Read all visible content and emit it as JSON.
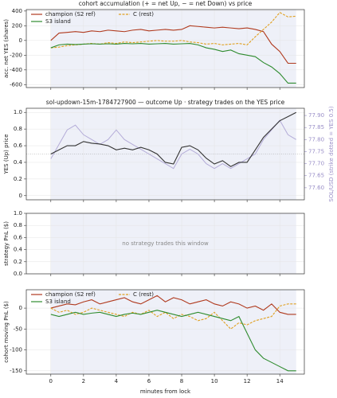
{
  "chart_data": [
    {
      "type": "line",
      "title": "cohort accumulation (+ = net Up, − = net Down) vs price",
      "ylabel": "acc. net YES (shares)",
      "x": [
        0,
        0.5,
        1,
        1.5,
        2,
        2.5,
        3,
        3.5,
        4,
        4.5,
        5,
        5.5,
        6,
        6.5,
        7,
        7.5,
        8,
        8.5,
        9,
        9.5,
        10,
        10.5,
        11,
        11.5,
        12,
        12.5,
        13,
        13.5,
        14,
        14.5,
        15
      ],
      "series": [
        {
          "name": "champion (S2 ref)",
          "color": "#b03a1e",
          "style": "solid",
          "values": [
            0,
            100,
            110,
            120,
            110,
            130,
            120,
            140,
            130,
            120,
            140,
            150,
            130,
            140,
            150,
            140,
            150,
            200,
            190,
            180,
            170,
            180,
            170,
            160,
            170,
            150,
            120,
            -50,
            -150,
            -310,
            -310
          ]
        },
        {
          "name": "C (rest)",
          "color": "#e0a020",
          "style": "dashed",
          "values": [
            -100,
            -90,
            -70,
            -60,
            -50,
            -40,
            -50,
            -30,
            -40,
            -20,
            -30,
            -20,
            -10,
            0,
            -10,
            -10,
            0,
            -20,
            -30,
            -50,
            -40,
            -60,
            -50,
            -40,
            -60,
            50,
            150,
            250,
            380,
            320,
            330
          ]
        },
        {
          "name": "S3 island",
          "color": "#2e8b2e",
          "style": "solid",
          "values": [
            -100,
            -60,
            -50,
            -55,
            -50,
            -45,
            -50,
            -45,
            -50,
            -40,
            -45,
            -40,
            -50,
            -45,
            -40,
            -50,
            -45,
            -40,
            -60,
            -100,
            -120,
            -150,
            -130,
            -180,
            -200,
            -220,
            -300,
            -360,
            -450,
            -580,
            -580
          ]
        }
      ],
      "xlim": [
        -1.5,
        15.5
      ],
      "ylim": [
        -640,
        420
      ],
      "yticks": [
        -600,
        -400,
        -200,
        0,
        200,
        400
      ],
      "grid": true,
      "legend": "upper left"
    },
    {
      "type": "line",
      "title": "sol-updown-15m-1784727900 — outcome Up · strategy trades on the YES price",
      "ylabel": "YES (Up) price",
      "y2label": "SOL/USD (strike dotted = YES 0.5)",
      "x": [
        0,
        0.5,
        1,
        1.5,
        2,
        2.5,
        3,
        3.5,
        4,
        4.5,
        5,
        5.5,
        6,
        6.5,
        7,
        7.5,
        8,
        8.5,
        9,
        9.5,
        10,
        10.5,
        11,
        11.5,
        12,
        12.5,
        13,
        13.5,
        14,
        14.5,
        15
      ],
      "series": [
        {
          "color": "#b4acd8",
          "axis": "y2",
          "style": "solid",
          "values": [
            77.72,
            77.78,
            77.84,
            77.86,
            77.82,
            77.8,
            77.78,
            77.8,
            77.84,
            77.8,
            77.78,
            77.76,
            77.74,
            77.72,
            77.7,
            77.68,
            77.74,
            77.76,
            77.74,
            77.7,
            77.68,
            77.7,
            77.68,
            77.7,
            77.72,
            77.74,
            77.8,
            77.84,
            77.88,
            77.82,
            77.8
          ]
        },
        {
          "color": "#333333",
          "style": "solid",
          "values": [
            0.5,
            0.55,
            0.6,
            0.6,
            0.65,
            0.63,
            0.62,
            0.6,
            0.55,
            0.57,
            0.55,
            0.58,
            0.55,
            0.5,
            0.4,
            0.38,
            0.58,
            0.6,
            0.55,
            0.45,
            0.38,
            0.42,
            0.35,
            0.4,
            0.4,
            0.55,
            0.7,
            0.8,
            0.9,
            0.95,
            1.0
          ]
        }
      ],
      "reference_line": 0.5,
      "xlim": [
        -1.5,
        15.5
      ],
      "ylim": [
        -0.05,
        1.05
      ],
      "yticks": [
        0,
        {
          "value": 0.2,
          "label": "0.2"
        },
        {
          "value": 0.4,
          "label": "0.4"
        },
        {
          "value": 0.6,
          "label": "0.6"
        },
        {
          "value": 0.8,
          "label": "0.8"
        },
        {
          "value": 1,
          "label": "1.0"
        }
      ],
      "y2lim": [
        77.55,
        77.93
      ],
      "y2ticks": [
        {
          "value": 77.6,
          "label": "77.60"
        },
        {
          "value": 77.65,
          "label": "77.65"
        },
        {
          "value": 77.7,
          "label": "77.70"
        },
        {
          "value": 77.75,
          "label": "77.75"
        },
        {
          "value": 77.8,
          "label": "77.80"
        },
        {
          "value": 77.85,
          "label": "77.85"
        },
        {
          "value": 77.9,
          "label": "77.90"
        }
      ],
      "y2color": "#9a8fc8",
      "grid": true
    },
    {
      "type": "line",
      "ylabel": "strategy PnL ($)",
      "annotation": "no strategy trades this window",
      "series": [],
      "xlim": [
        -1.5,
        15.5
      ],
      "ylim": [
        0,
        1
      ],
      "yticks": [
        {
          "value": 0,
          "label": "0.0"
        },
        {
          "value": 0.2,
          "label": "0.2"
        },
        {
          "value": 0.4,
          "label": "0.4"
        },
        {
          "value": 0.6,
          "label": "0.6"
        },
        {
          "value": 0.8,
          "label": "0.8"
        },
        {
          "value": 1,
          "label": "1.0"
        }
      ],
      "grid": true
    },
    {
      "type": "line",
      "ylabel": "cohort moving PnL ($)",
      "xlabel": "minutes from lock",
      "x": [
        0,
        0.5,
        1,
        1.5,
        2,
        2.5,
        3,
        3.5,
        4,
        4.5,
        5,
        5.5,
        6,
        6.5,
        7,
        7.5,
        8,
        8.5,
        9,
        9.5,
        10,
        10.5,
        11,
        11.5,
        12,
        12.5,
        13,
        13.5,
        14,
        14.5,
        15
      ],
      "series": [
        {
          "name": "champion (S2 ref)",
          "color": "#b03a1e",
          "style": "solid",
          "values": [
            0,
            5,
            10,
            8,
            15,
            20,
            10,
            15,
            20,
            25,
            15,
            10,
            20,
            30,
            15,
            25,
            20,
            10,
            15,
            20,
            10,
            5,
            15,
            10,
            0,
            5,
            -5,
            10,
            -10,
            -15,
            -15
          ]
        },
        {
          "name": "C (rest)",
          "color": "#e0a020",
          "style": "dashed",
          "values": [
            0,
            -10,
            -5,
            -15,
            -10,
            0,
            -5,
            -10,
            -15,
            -20,
            -10,
            -15,
            -5,
            -20,
            -10,
            -25,
            -15,
            -20,
            -30,
            -25,
            -10,
            -30,
            -50,
            -35,
            -40,
            -30,
            -25,
            -20,
            5,
            10,
            10
          ]
        },
        {
          "name": "S3 island",
          "color": "#2e8b2e",
          "style": "solid",
          "values": [
            -15,
            -20,
            -15,
            -10,
            -15,
            -12,
            -10,
            -15,
            -20,
            -15,
            -12,
            -15,
            -10,
            -5,
            -10,
            -15,
            -20,
            -15,
            -10,
            -15,
            -20,
            -25,
            -30,
            -20,
            -60,
            -100,
            -120,
            -130,
            -140,
            -150,
            -150
          ]
        }
      ],
      "xlim": [
        -1.5,
        15.5
      ],
      "ylim": [
        -158,
        44
      ],
      "yticks": [
        -150,
        -100,
        -50,
        0
      ],
      "xticks": [
        0,
        2,
        4,
        6,
        8,
        10,
        12,
        14
      ],
      "grid": true,
      "legend": "upper left"
    }
  ]
}
